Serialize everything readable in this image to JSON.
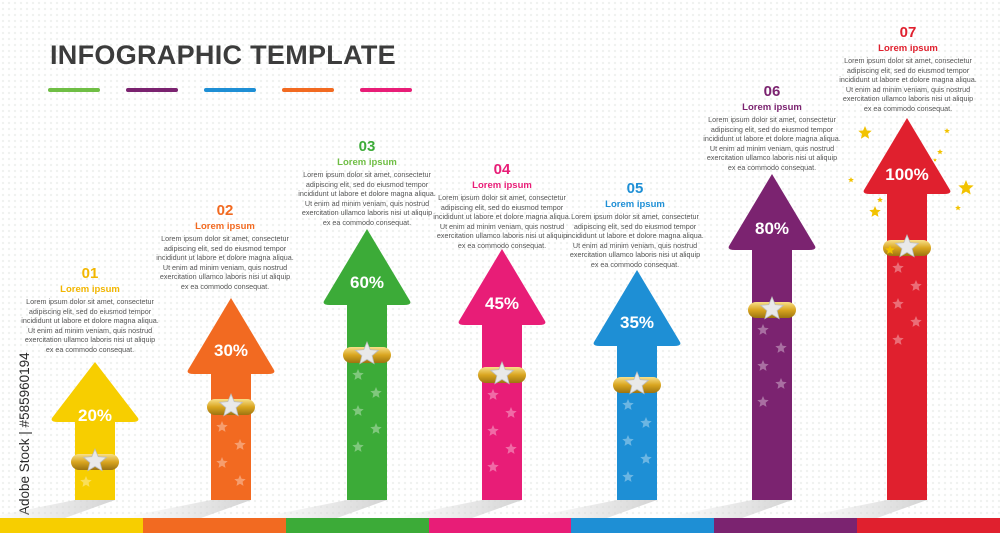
{
  "title": "INFOGRAPHIC TEMPLATE",
  "watermark": "Adobe Stock | #585960194",
  "colors": [
    "#f7ce00",
    "#f26a21",
    "#3cab38",
    "#e81d77",
    "#1e8fd5",
    "#7b2370",
    "#e0202e"
  ],
  "swatch_colors": [
    "#6fbe44",
    "#7b2370",
    "#1e8fd5",
    "#f26a21",
    "#e81d77"
  ],
  "steps": [
    {
      "number": "01",
      "heading": "Lorem ipsum",
      "percent": "20%",
      "value": 20,
      "color": "#f7ce00",
      "head_color": "#f2b600",
      "text": [
        "Lorem ipsum dolor sit amet, consectetur",
        "adipiscing elit, sed do eiusmod tempor",
        "incididunt ut labore et dolore magna aliqua.",
        "Ut enim ad minim veniam, quis nostrud",
        "exercitation ullamco laboris nisi ut aliquip",
        "ex ea commodo consequat."
      ]
    },
    {
      "number": "02",
      "heading": "Lorem ipsum",
      "percent": "30%",
      "value": 30,
      "color": "#f26a21",
      "head_color": "#f26a21",
      "text": [
        "Lorem ipsum dolor sit amet, consectetur",
        "adipiscing elit, sed do eiusmod tempor",
        "incididunt ut labore et dolore magna aliqua.",
        "Ut enim ad minim veniam, quis nostrud",
        "exercitation ullamco laboris nisi ut aliquip",
        "ex ea commodo consequat."
      ]
    },
    {
      "number": "03",
      "heading": "Lorem ipsum",
      "percent": "60%",
      "value": 60,
      "color": "#3cab38",
      "head_color": "#6fbe44",
      "text": [
        "Lorem ipsum dolor sit amet, consectetur",
        "adipiscing elit, sed do eiusmod tempor",
        "incididunt ut labore et dolore magna aliqua.",
        "Ut enim ad minim veniam, quis nostrud",
        "exercitation ullamco laboris nisi ut aliquip",
        "ex ea commodo consequat."
      ]
    },
    {
      "number": "04",
      "heading": "Lorem ipsum",
      "percent": "45%",
      "value": 45,
      "color": "#e81d77",
      "head_color": "#e81d77",
      "text": [
        "Lorem ipsum dolor sit amet, consectetur",
        "adipiscing elit, sed do eiusmod tempor",
        "incididunt ut labore et dolore magna aliqua.",
        "Ut enim ad minim veniam, quis nostrud",
        "exercitation ullamco laboris nisi ut aliquip",
        "ex ea commodo consequat."
      ]
    },
    {
      "number": "05",
      "heading": "Lorem ipsum",
      "percent": "35%",
      "value": 35,
      "color": "#1e8fd5",
      "head_color": "#1e8fd5",
      "text": [
        "Lorem ipsum dolor sit amet, consectetur",
        "adipiscing elit, sed do eiusmod tempor",
        "incididunt ut labore et dolore magna aliqua.",
        "Ut enim ad minim veniam, quis nostrud",
        "exercitation ullamco laboris nisi ut aliquip",
        "ex ea commodo consequat."
      ]
    },
    {
      "number": "06",
      "heading": "Lorem ipsum",
      "percent": "80%",
      "value": 80,
      "color": "#7b2370",
      "head_color": "#7b2370",
      "text": [
        "Lorem ipsum dolor sit amet, consectetur",
        "adipiscing elit, sed do eiusmod tempor",
        "incididunt ut labore et dolore magna aliqua.",
        "Ut enim ad minim veniam, quis nostrud",
        "exercitation ullamco laboris nisi ut aliquip",
        "ex ea commodo consequat."
      ]
    },
    {
      "number": "07",
      "heading": "Lorem ipsum",
      "percent": "100%",
      "value": 100,
      "color": "#e0202e",
      "head_color": "#e0202e",
      "text": [
        "Lorem ipsum dolor sit amet, consectetur",
        "adipiscing elit, sed do eiusmod tempor",
        "incididunt ut labore et dolore magna aliqua.",
        "Ut enim ad minim veniam, quis nostrud",
        "exercitation ullamco laboris nisi ut aliquip",
        "ex ea commodo consequat."
      ]
    }
  ]
}
